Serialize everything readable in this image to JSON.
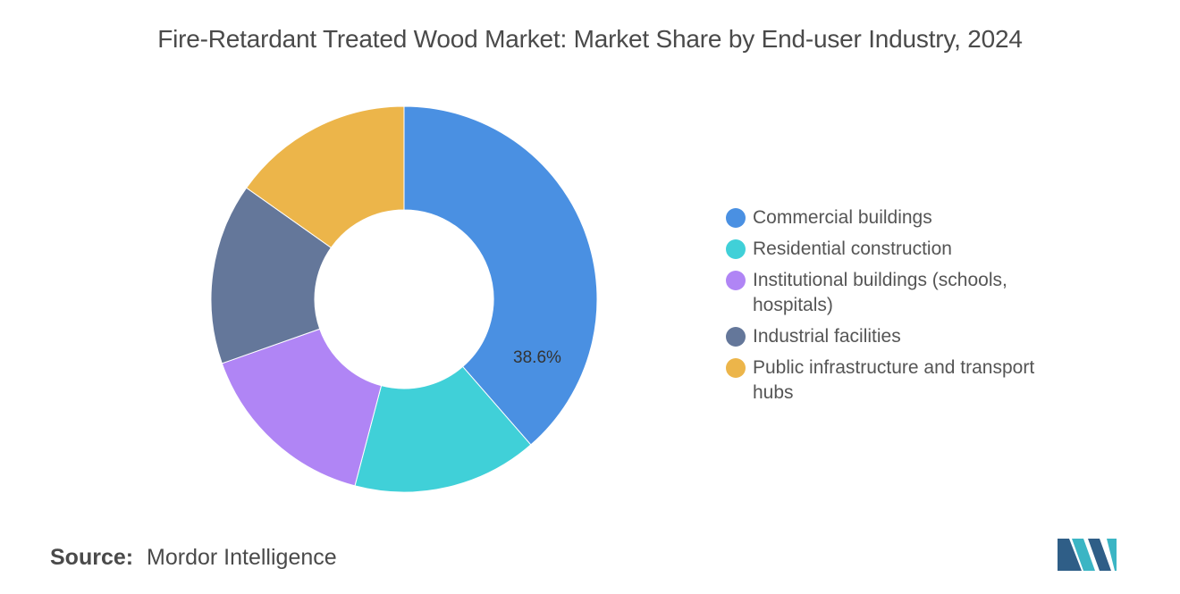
{
  "chart_data": {
    "type": "pie",
    "donut": true,
    "title": "Fire-Retardant Treated Wood Market: Market Share by End-user Industry, 2024",
    "categories": [
      "Commercial buildings",
      "Residential construction",
      "Institutional buildings (schools, hospitals)",
      "Industrial facilities",
      "Public infrastructure and transport hubs"
    ],
    "values": [
      38.6,
      15.5,
      15.5,
      15.2,
      15.2
    ],
    "data_labels": [
      "38.6%",
      "",
      "",
      "",
      ""
    ],
    "colors": [
      "#4a90e2",
      "#40d0d8",
      "#b085f5",
      "#64779a",
      "#ecb54a"
    ],
    "start_angle_deg": 0,
    "direction": "clockwise",
    "legend_position": "right"
  },
  "source": {
    "label": "Source:",
    "value": "Mordor Intelligence"
  },
  "logo": {
    "icon": "mordor-intelligence-logo",
    "colors": [
      "#2f5e87",
      "#3bb5c4"
    ]
  }
}
